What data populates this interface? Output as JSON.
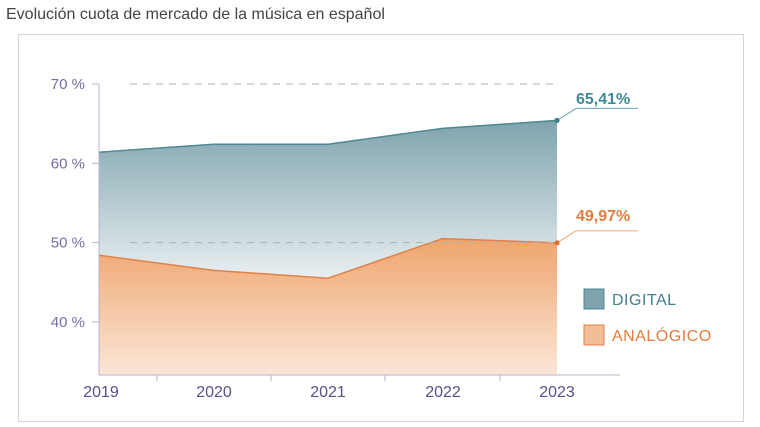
{
  "title": "Evolución cuota de mercado de la música en español",
  "chart_data": {
    "type": "area",
    "x": [
      "2019",
      "2020",
      "2021",
      "2022",
      "2023"
    ],
    "series": [
      {
        "name": "DIGITAL",
        "values": [
          61.4,
          62.4,
          62.4,
          64.4,
          65.41
        ],
        "color": "#6f9aa6",
        "callout": "65,41%"
      },
      {
        "name": "ANALÓGICO",
        "values": [
          48.4,
          46.5,
          45.5,
          50.5,
          49.97
        ],
        "color": "#e8935a",
        "callout": "49,97%"
      }
    ],
    "y_ticks": [
      {
        "value": 40,
        "label": "40 %"
      },
      {
        "value": 50,
        "label": "50 %"
      },
      {
        "value": 60,
        "label": "60 %"
      },
      {
        "value": 70,
        "label": "70 %"
      }
    ],
    "ylim": [
      33.3,
      70
    ],
    "grid": "dashed at 50 and 70",
    "legend_position": "right"
  }
}
